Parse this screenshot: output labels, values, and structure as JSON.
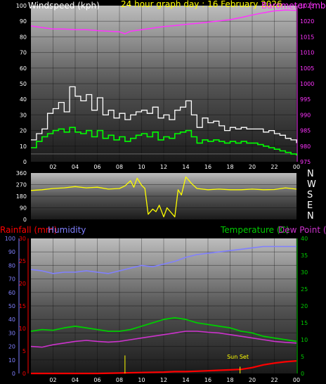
{
  "header": {
    "windspeed_label": "Windspeed (kph)",
    "title": "24 hour graph day : 16 February 2026",
    "barometer_label": "Barometer (mb)",
    "rainfall_label": "Rainfall (mm)",
    "humidity_label": "Humidity",
    "temperature_label": "Temperature (C)",
    "dewpoint_label": "Dew Point (C)",
    "sunset_label": "Sun Set"
  },
  "compass": [
    "N",
    "W",
    "S",
    "E",
    "N"
  ],
  "colors": {
    "wind_avg": "#00ff00",
    "wind_gust": "#ffffff",
    "wind_baseline": "#666666",
    "barometer": "#ff33ff",
    "direction": "#ffff00",
    "rainfall": "#ff0000",
    "humidity": "#8080ff",
    "temperature": "#00cc00",
    "dewpoint": "#cc33cc",
    "title": "#ffff00",
    "sunset_marker": "#ffff00"
  },
  "chart_data": [
    {
      "type": "line",
      "title": "Windspeed (kph) / Barometer (mb)",
      "x_unit": "hour",
      "xticks": [
        "02",
        "04",
        "06",
        "08",
        "10",
        "12",
        "14",
        "16",
        "18",
        "20",
        "22",
        "00"
      ],
      "xlim": [
        0,
        24
      ],
      "left_axis": {
        "label": "Windspeed (kph)",
        "ylim": [
          0,
          100
        ],
        "ticks": [
          0,
          10,
          20,
          30,
          40,
          50,
          60,
          70,
          80,
          90,
          100
        ]
      },
      "right_axis": {
        "label": "Barometer (mb)",
        "ylim": [
          975,
          1025
        ],
        "ticks": [
          975,
          980,
          985,
          990,
          995,
          1000,
          1005,
          1010,
          1015,
          1020,
          1025
        ]
      },
      "series": [
        {
          "name": "Windspeed",
          "axis": "left",
          "color_key": "wind_gust",
          "x": [
            0,
            0.5,
            1,
            1.5,
            2,
            2.5,
            3,
            3.5,
            4,
            4.5,
            5,
            5.5,
            6,
            6.5,
            7,
            7.5,
            8,
            8.5,
            9,
            9.5,
            10,
            10.5,
            11,
            11.5,
            12,
            12.5,
            13,
            13.5,
            14,
            14.5,
            15,
            15.5,
            16,
            16.5,
            17,
            17.5,
            18,
            18.5,
            19,
            19.5,
            20,
            20.5,
            21,
            21.5,
            22,
            22.5,
            23,
            23.5,
            24
          ],
          "values": [
            14,
            18,
            21,
            31,
            34,
            38,
            32,
            48,
            42,
            39,
            43,
            33,
            41,
            30,
            33,
            28,
            31,
            27,
            30,
            32,
            33,
            31,
            35,
            28,
            30,
            27,
            33,
            35,
            39,
            30,
            22,
            28,
            25,
            26,
            23,
            20,
            22,
            21,
            22,
            21,
            21,
            21,
            19,
            20,
            18,
            17,
            15,
            14,
            12
          ]
        },
        {
          "name": "Wind average",
          "axis": "left",
          "color_key": "wind_avg",
          "x": [
            0,
            0.5,
            1,
            1.5,
            2,
            2.5,
            3,
            3.5,
            4,
            4.5,
            5,
            5.5,
            6,
            6.5,
            7,
            7.5,
            8,
            8.5,
            9,
            9.5,
            10,
            10.5,
            11,
            11.5,
            12,
            12.5,
            13,
            13.5,
            14,
            14.5,
            15,
            15.5,
            16,
            16.5,
            17,
            17.5,
            18,
            18.5,
            19,
            19.5,
            20,
            20.5,
            21,
            21.5,
            22,
            22.5,
            23,
            23.5,
            24
          ],
          "values": [
            9,
            13,
            16,
            18,
            20,
            21,
            19,
            22,
            19,
            18,
            20,
            16,
            20,
            15,
            17,
            14,
            16,
            13,
            15,
            17,
            18,
            16,
            19,
            14,
            16,
            15,
            18,
            19,
            20,
            16,
            12,
            14,
            13,
            14,
            13,
            12,
            13,
            12,
            13,
            12,
            12,
            11,
            10,
            9,
            8,
            7,
            6,
            5,
            4
          ]
        },
        {
          "name": "Barometer",
          "axis": "right",
          "color_key": "barometer",
          "x": [
            0,
            1,
            2,
            3,
            4,
            5,
            6,
            7,
            8,
            8.5,
            9,
            10,
            11,
            12,
            13,
            14,
            15,
            16,
            17,
            18,
            19,
            20,
            21,
            22,
            23,
            24
          ],
          "values": [
            1018.5,
            1018.0,
            1017.5,
            1017.5,
            1017.3,
            1017.3,
            1017.0,
            1016.8,
            1016.6,
            1016.0,
            1016.8,
            1017.3,
            1017.8,
            1018.3,
            1018.6,
            1019.0,
            1019.3,
            1019.7,
            1020.1,
            1020.5,
            1021.2,
            1022.0,
            1022.7,
            1023.3,
            1023.6,
            1023.5
          ]
        }
      ]
    },
    {
      "type": "line",
      "title": "Wind direction",
      "x_unit": "hour",
      "xlim": [
        0,
        24
      ],
      "ylim": [
        0,
        360
      ],
      "yticks": [
        0,
        90,
        180,
        270,
        360
      ],
      "ytick_labels": [
        "0",
        "90",
        "180",
        "270",
        "360"
      ],
      "series": [
        {
          "name": "Wind direction",
          "color_key": "direction",
          "x": [
            0,
            1,
            2,
            3,
            4,
            5,
            6,
            7,
            8,
            8.5,
            9,
            9.3,
            9.6,
            10,
            10.3,
            10.6,
            11,
            11.3,
            11.6,
            12,
            12.3,
            12.6,
            13,
            13.3,
            13.6,
            14,
            14.5,
            15,
            16,
            17,
            18,
            19,
            20,
            21,
            22,
            23,
            24
          ],
          "values": [
            225,
            230,
            240,
            245,
            255,
            245,
            250,
            235,
            240,
            260,
            300,
            250,
            320,
            265,
            240,
            40,
            80,
            60,
            110,
            20,
            90,
            60,
            20,
            230,
            190,
            330,
            280,
            240,
            230,
            235,
            230,
            230,
            235,
            230,
            232,
            245,
            235
          ]
        }
      ]
    },
    {
      "type": "line",
      "title": "Rainfall (mm) / Humidity / Temperature (C) / Dew Point (C)",
      "x_unit": "hour",
      "xlim": [
        0,
        24
      ],
      "rain_axis": {
        "label": "Rainfall (mm)",
        "ylim": [
          0,
          30
        ],
        "ticks": [
          0,
          5,
          10,
          15,
          20,
          25,
          30
        ]
      },
      "humidity_axis": {
        "label": "Humidity",
        "ylim": [
          0,
          100
        ],
        "ticks": [
          0,
          10,
          20,
          30,
          40,
          50,
          60,
          70,
          80,
          90,
          100
        ]
      },
      "temp_axis": {
        "label": "Temperature (C)",
        "ylim": [
          0,
          40
        ],
        "ticks": [
          0,
          5,
          10,
          15,
          20,
          25,
          30,
          35,
          40
        ]
      },
      "series": [
        {
          "name": "Humidity",
          "axis": "humidity",
          "color_key": "humidity",
          "x": [
            0,
            1,
            2,
            3,
            4,
            5,
            6,
            7,
            8,
            9,
            10,
            11,
            12,
            13,
            14,
            15,
            16,
            17,
            18,
            19,
            20,
            21,
            22,
            23,
            24
          ],
          "values": [
            77,
            76,
            74,
            75,
            75,
            76,
            75,
            74,
            76,
            78,
            80,
            79,
            81,
            83,
            86,
            88,
            89,
            90,
            91,
            92,
            93,
            94,
            94,
            94,
            94
          ]
        },
        {
          "name": "Temperature",
          "axis": "temp",
          "color_key": "temperature",
          "x": [
            0,
            1,
            2,
            3,
            4,
            5,
            6,
            7,
            8,
            9,
            10,
            11,
            12,
            13,
            14,
            15,
            16,
            17,
            18,
            19,
            20,
            21,
            22,
            23,
            24
          ],
          "values": [
            12.5,
            13,
            12.8,
            13.5,
            14,
            13.5,
            13,
            12.5,
            12.5,
            13,
            14,
            15,
            16,
            16.5,
            16,
            15,
            14.5,
            14,
            13.5,
            12.5,
            12,
            11,
            10.5,
            10,
            9.5
          ]
        },
        {
          "name": "Dew Point",
          "axis": "temp",
          "color_key": "dewpoint",
          "x": [
            0,
            1,
            2,
            3,
            4,
            5,
            6,
            7,
            8,
            9,
            10,
            11,
            12,
            13,
            14,
            15,
            16,
            17,
            18,
            19,
            20,
            21,
            22,
            23,
            24
          ],
          "values": [
            8,
            7.8,
            8.5,
            9,
            9.5,
            9.8,
            9.5,
            9.3,
            9.5,
            10,
            10.5,
            11,
            11.5,
            12,
            12.5,
            12.5,
            12.2,
            12,
            11.5,
            11,
            10.5,
            10,
            9.5,
            9.2,
            9
          ]
        },
        {
          "name": "Rainfall",
          "axis": "rain",
          "color_key": "rainfall",
          "x": [
            0,
            2,
            4,
            6,
            8,
            10,
            12,
            13,
            14,
            15,
            16,
            17,
            18,
            19,
            20,
            21,
            22,
            23,
            24
          ],
          "values": [
            0,
            0,
            0,
            0,
            0.1,
            0.2,
            0.3,
            0.4,
            0.4,
            0.5,
            0.6,
            0.7,
            0.8,
            0.9,
            1.3,
            1.9,
            2.3,
            2.6,
            2.8
          ]
        }
      ],
      "annotations": [
        {
          "text": "Sun Set",
          "x": 18.7
        }
      ],
      "markers": [
        {
          "x": 8.5,
          "axis": "rain",
          "value": 4
        },
        {
          "x": 18.9,
          "axis": "rain",
          "value": 1.5
        }
      ]
    }
  ]
}
